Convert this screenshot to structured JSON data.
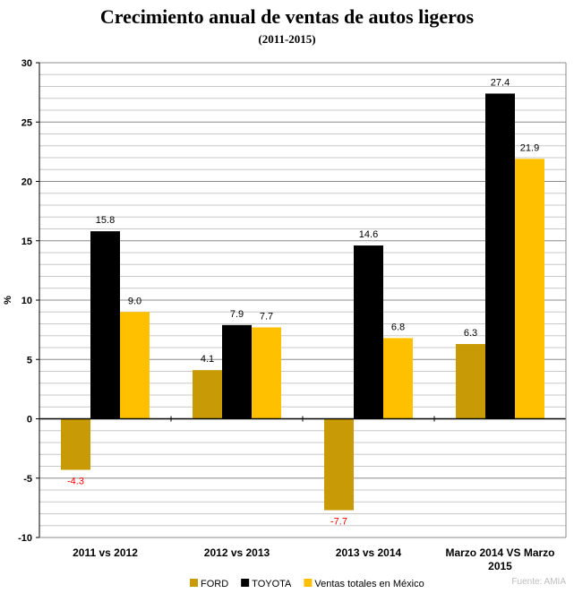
{
  "chart_data": {
    "type": "bar",
    "title": "Crecimiento anual de ventas de autos ligeros",
    "subtitle": "(2011-2015)",
    "ylabel": "%",
    "xlabel": "",
    "ylim": [
      -10,
      30
    ],
    "yticks": [
      -10,
      -5,
      0,
      5,
      10,
      15,
      20,
      25,
      30
    ],
    "grid": true,
    "legend_position": "bottom",
    "categories": [
      [
        "2011 vs 2012"
      ],
      [
        "2012 vs 2013"
      ],
      [
        "2013 vs 2014"
      ],
      [
        "Marzo 2014 VS Marzo",
        "2015"
      ]
    ],
    "series": [
      {
        "name": "FORD",
        "color": "#C89B06",
        "values": [
          -4.3,
          4.1,
          -7.7,
          6.3
        ],
        "labels": [
          "-4.3",
          "4.1",
          "-7.7",
          "6.3"
        ]
      },
      {
        "name": "TOYOTA",
        "color": "#000000",
        "values": [
          null,
          7.9,
          null,
          27.4
        ],
        "labels": [
          null,
          "7.9",
          null,
          "27.4"
        ]
      },
      {
        "name": "Ventas totales en México",
        "color": "#FFC000",
        "values": [
          9.0,
          7.7,
          6.8,
          21.9
        ],
        "labels": [
          "9.0",
          "7.7",
          "6.8",
          "21.9"
        ]
      }
    ],
    "toyota_full_values": [
      15.8,
      7.9,
      14.6,
      27.4
    ],
    "toyota_full_labels": [
      "15.8",
      "7.9",
      "14.6",
      "27.4"
    ],
    "negative_label_color": "#FF0000",
    "source": "Fuente: AMIA"
  }
}
